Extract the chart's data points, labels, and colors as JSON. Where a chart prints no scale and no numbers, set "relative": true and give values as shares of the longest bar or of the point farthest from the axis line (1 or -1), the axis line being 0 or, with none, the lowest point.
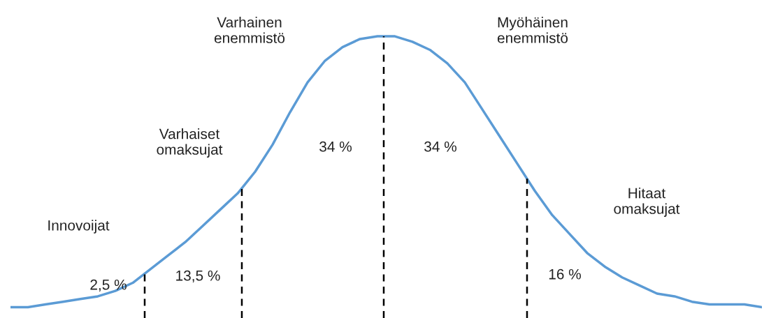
{
  "chart_data": {
    "type": "line",
    "relative": true,
    "line_style": "solid",
    "categories": [
      null,
      null,
      null,
      null,
      null,
      null,
      null,
      null,
      null,
      null,
      null,
      null,
      null,
      null,
      null,
      null,
      null,
      null,
      null,
      null,
      null,
      null,
      null,
      null,
      null,
      null,
      null,
      null,
      null,
      null,
      null,
      null,
      null,
      null,
      null,
      null,
      null,
      null,
      null,
      null,
      null,
      null,
      null,
      null
    ],
    "series": [
      {
        "color": "#5b9bd5",
        "values": [
          0,
          0,
          0.01,
          0.02,
          0.03,
          0.04,
          0.06,
          0.09,
          0.14,
          0.19,
          0.24,
          0.3,
          0.36,
          0.42,
          0.5,
          0.6,
          0.72,
          0.83,
          0.91,
          0.96,
          0.99,
          1,
          1,
          0.98,
          0.95,
          0.9,
          0.83,
          0.73,
          0.63,
          0.53,
          0.43,
          0.34,
          0.27,
          0.2,
          0.15,
          0.11,
          0.08,
          0.05,
          0.04,
          0.02,
          0.01,
          0.01,
          0.01,
          0
        ]
      }
    ],
    "annotations": [
      "Innovoijat",
      "Varhaiset\nomaksujat",
      "Varhainen\nenemmistö",
      "Myöhäinen\nenemmistö",
      "Hitaat\nomaksujat",
      "2,5 %",
      "13,5 %",
      "34 %",
      "34 %",
      "16 %"
    ]
  }
}
